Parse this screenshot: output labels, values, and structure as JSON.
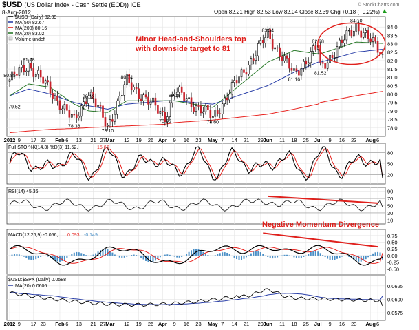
{
  "header": {
    "symbol": "$USD",
    "description": "(US Dollar Index - Cash Settle (EOD)) ICE",
    "date": "8-Aug-2012",
    "ohlc": "Open 82.21  High 82.53  Low 82.04  Close 82.39  Chg +0.18 (+0.22%)",
    "arrow_color": "#1a9a1a",
    "watermark": "© StockCharts.com"
  },
  "price_panel": {
    "legend": [
      {
        "label": "$USD (Daily) 82.39",
        "color": "#000000"
      },
      {
        "label": "MA(50) 82.67",
        "color": "#2a3fa8"
      },
      {
        "label": "MA(200) 80.16",
        "color": "#e8211d"
      },
      {
        "label": "MA(20) 83.02",
        "color": "#2a7a2a"
      },
      {
        "label": "Volume undef",
        "color": "#888888"
      }
    ],
    "annotation_lines": [
      "Minor Head-and-Shoulders top",
      "with downside target to 81"
    ],
    "annotation_color": "#e0201c",
    "y_ticks": [
      "84.0",
      "83.5",
      "83.0",
      "82.5",
      "82.0",
      "81.5",
      "81.0",
      "80.5",
      "80.0",
      "79.5",
      "79.0",
      "78.5",
      "78.0"
    ],
    "peak_labels": [
      {
        "text": "80.85",
        "date": "2012-01-03",
        "value": 80.85
      },
      {
        "text": "81.78",
        "date": "2012-01-13",
        "value": 81.78
      },
      {
        "text": "79.52",
        "date": "2012-01-05",
        "value": 79.52
      },
      {
        "text": "80.12",
        "date": "2012-02-17",
        "value": 80.12
      },
      {
        "text": "78.36",
        "date": "2012-02-09",
        "value": 78.36
      },
      {
        "text": "78.10",
        "date": "2012-02-29",
        "value": 78.1
      },
      {
        "text": "80.74",
        "date": "2012-03-12",
        "value": 80.74
      },
      {
        "text": "78.66",
        "date": "2012-04-03",
        "value": 78.66
      },
      {
        "text": "80.18",
        "date": "2012-04-09",
        "value": 80.18
      },
      {
        "text": "78.60",
        "date": "2012-05-01",
        "value": 78.6
      },
      {
        "text": "83.54",
        "date": "2012-06-01",
        "value": 83.54
      },
      {
        "text": "81.16",
        "date": "2012-06-18",
        "value": 81.16
      },
      {
        "text": "82.88",
        "date": "2012-07-02",
        "value": 82.88
      },
      {
        "text": "81.52",
        "date": "2012-07-03",
        "value": 81.52
      },
      {
        "text": "84.10",
        "date": "2012-07-24",
        "value": 84.1
      }
    ]
  },
  "x_axis": {
    "labels": [
      {
        "text": "2012",
        "bold": true
      },
      {
        "text": "9"
      },
      {
        "text": "17"
      },
      {
        "text": "23"
      },
      {
        "text": "Feb",
        "bold": true
      },
      {
        "text": "6"
      },
      {
        "text": "13"
      },
      {
        "text": "21"
      },
      {
        "text": "27"
      },
      {
        "text": "Mar",
        "bold": true
      },
      {
        "text": "12"
      },
      {
        "text": "19"
      },
      {
        "text": "26"
      },
      {
        "text": "Apr",
        "bold": true
      },
      {
        "text": "9"
      },
      {
        "text": "16"
      },
      {
        "text": "23"
      },
      {
        "text": "May",
        "bold": true
      },
      {
        "text": "7"
      },
      {
        "text": "14"
      },
      {
        "text": "21"
      },
      {
        "text": "29"
      },
      {
        "text": "Jun",
        "bold": true
      },
      {
        "text": "11"
      },
      {
        "text": "18"
      },
      {
        "text": "25"
      },
      {
        "text": "Jul",
        "bold": true
      },
      {
        "text": "9"
      },
      {
        "text": "16"
      },
      {
        "text": "23"
      },
      {
        "text": "Aug",
        "bold": true
      },
      {
        "text": "6"
      }
    ]
  },
  "sto_panel": {
    "legend": "Full STO %K(14,3) %D(3) 11.52,",
    "legend_value": "15.66",
    "value_color": "#e8211d",
    "y_ticks": [
      "80",
      "50",
      "20"
    ]
  },
  "rsi_panel": {
    "legend": "RSI(14) 45.36",
    "y_ticks": [
      "90",
      "70",
      "50",
      "30",
      "10"
    ]
  },
  "macd_panel": {
    "legend": "MACD(12,26,9) -0.056,",
    "legend_signal": "0.093,",
    "legend_hist": "-0.149",
    "annotation": "Negative Momentum Divergence",
    "y_ticks": [
      "0.75",
      "0.50",
      "0.25",
      "0.00",
      "-0.25",
      "-0.50"
    ]
  },
  "ratio_panel": {
    "legend": "$USD:$SPX (Daily) 0.0588",
    "legend2": "MA(20) 0.0606",
    "y_ticks": [
      "0.0625",
      "0.0600",
      "0.0575"
    ]
  },
  "chart_data": {
    "type": "line",
    "title": "$USD (US Dollar Index - Cash Settle (EOD)) ICE",
    "xlabel": "",
    "ylabel": "",
    "ylim": [
      77.6,
      84.5
    ],
    "x": [
      "2012-01-03",
      "2012-01-13",
      "2012-01-26",
      "2012-02-09",
      "2012-02-17",
      "2012-02-29",
      "2012-03-12",
      "2012-04-03",
      "2012-04-09",
      "2012-05-01",
      "2012-06-01",
      "2012-06-18",
      "2012-07-02",
      "2012-07-03",
      "2012-07-24",
      "2012-08-08"
    ],
    "series": [
      {
        "name": "$USD (Daily) 82.39",
        "values": [
          80.85,
          81.78,
          80.2,
          78.36,
          80.12,
          78.1,
          80.74,
          78.66,
          80.18,
          78.6,
          83.54,
          81.16,
          82.88,
          81.52,
          84.1,
          82.39
        ]
      },
      {
        "name": "MA(50) 82.67",
        "values": [
          79.9,
          80.3,
          80.0,
          79.5,
          79.3,
          79.1,
          79.4,
          79.6,
          79.6,
          79.4,
          80.5,
          81.3,
          81.9,
          81.9,
          82.5,
          82.67
        ]
      },
      {
        "name": "MA(200) 80.16",
        "values": [
          77.7,
          77.8,
          77.9,
          77.95,
          78.0,
          78.05,
          78.1,
          78.2,
          78.3,
          78.45,
          78.8,
          79.1,
          79.4,
          79.5,
          79.9,
          80.16
        ]
      },
      {
        "name": "MA(20) 83.02",
        "values": [
          79.9,
          80.6,
          80.4,
          79.4,
          79.0,
          78.9,
          79.6,
          79.6,
          79.6,
          79.2,
          81.9,
          82.6,
          82.4,
          82.4,
          83.1,
          83.02
        ]
      }
    ],
    "annotations": [
      "Minor Head-and-Shoulders top with downside target to 81",
      "Negative Momentum Divergence"
    ]
  }
}
